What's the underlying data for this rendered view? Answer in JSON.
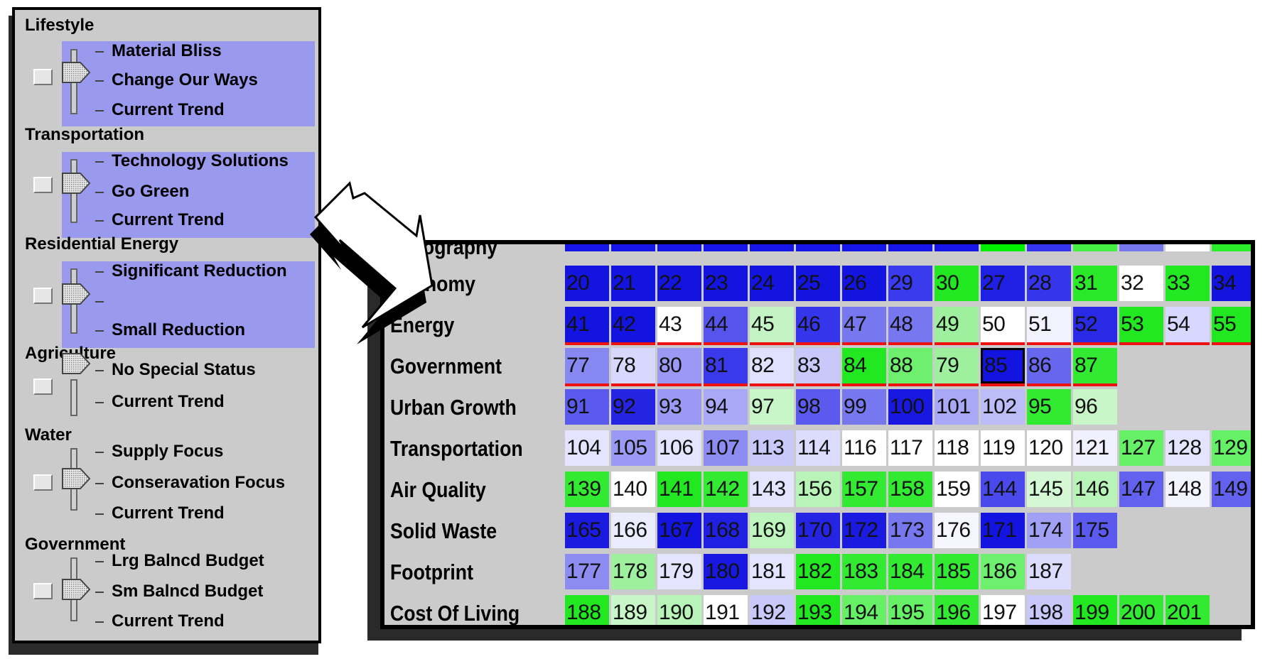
{
  "left_panel": {
    "sections": [
      {
        "title": "Lifestyle",
        "options": [
          "Material Bliss",
          "Change Our Ways",
          "Current Trend"
        ]
      },
      {
        "title": "Transportation",
        "options": [
          "Technology Solutions",
          "Go Green",
          "Current Trend"
        ]
      },
      {
        "title": "Residential Energy",
        "options": [
          "Significant Reduction",
          "",
          "Small Reduction"
        ]
      },
      {
        "title": "Agriculture",
        "options": [
          "No Special Status",
          "Current Trend"
        ]
      },
      {
        "title": "Water",
        "options": [
          "Supply Focus",
          "Conseravation Focus",
          "Current Trend"
        ]
      },
      {
        "title": "Government",
        "options": [
          "Lrg Balncd Budget",
          "Sm Balncd Budget",
          "Current Trend"
        ]
      }
    ]
  },
  "heatmap": {
    "partial_top_label": "...mography",
    "top_strip_colors": [
      "#1515e8",
      "#1515e8",
      "#1515e8",
      "#1515e8",
      "#1515e8",
      "#1515e8",
      "#1515e8",
      "#1515e8",
      "#1515e8",
      "#00ee00",
      "#3535f0",
      "#44f044",
      "#7777ee",
      "#ffffff",
      "#2aee2a",
      "#7575ee"
    ],
    "rows": [
      {
        "label": "Economy",
        "cells": [
          {
            "v": "20",
            "c": "#1414e0"
          },
          {
            "v": "21",
            "c": "#1414e0"
          },
          {
            "v": "22",
            "c": "#1414e0"
          },
          {
            "v": "23",
            "c": "#1414e0"
          },
          {
            "v": "24",
            "c": "#1414e0"
          },
          {
            "v": "25",
            "c": "#1414e0"
          },
          {
            "v": "26",
            "c": "#1414e0"
          },
          {
            "v": "29",
            "c": "#3a3aee"
          },
          {
            "v": "30",
            "c": "#22e822"
          },
          {
            "v": "27",
            "c": "#2020e4"
          },
          {
            "v": "28",
            "c": "#3535ec"
          },
          {
            "v": "31",
            "c": "#2ae82a"
          },
          {
            "v": "32",
            "c": "#ffffff"
          },
          {
            "v": "33",
            "c": "#22e822"
          },
          {
            "v": "34",
            "c": "#1414e0"
          }
        ]
      },
      {
        "label": "Energy",
        "underline": [
          0,
          1,
          2,
          3,
          4,
          5,
          6,
          7,
          8,
          9,
          10,
          11,
          12,
          13,
          14
        ],
        "cells": [
          {
            "v": "41",
            "c": "#1414e0"
          },
          {
            "v": "42",
            "c": "#1414e0"
          },
          {
            "v": "43",
            "c": "#ffffff"
          },
          {
            "v": "44",
            "c": "#5555ee"
          },
          {
            "v": "45",
            "c": "#c4f4c4"
          },
          {
            "v": "46",
            "c": "#3535ec"
          },
          {
            "v": "47",
            "c": "#7777f0"
          },
          {
            "v": "48",
            "c": "#7777f0"
          },
          {
            "v": "49",
            "c": "#9ef09e"
          },
          {
            "v": "50",
            "c": "#ffffff"
          },
          {
            "v": "51",
            "c": "#f2f2ff"
          },
          {
            "v": "52",
            "c": "#2a2ae6"
          },
          {
            "v": "53",
            "c": "#22e822"
          },
          {
            "v": "54",
            "c": "#d8d8ff"
          },
          {
            "v": "55",
            "c": "#22e822"
          }
        ]
      },
      {
        "label": "Government",
        "underline": [
          0,
          1,
          2,
          3,
          4,
          5,
          6,
          7,
          8,
          9,
          10,
          11
        ],
        "cells": [
          {
            "v": "77",
            "c": "#8888f2"
          },
          {
            "v": "78",
            "c": "#d8d8ff"
          },
          {
            "v": "80",
            "c": "#9a9af4"
          },
          {
            "v": "81",
            "c": "#3a3aec"
          },
          {
            "v": "82",
            "c": "#e0e0ff"
          },
          {
            "v": "83",
            "c": "#c8c8fa"
          },
          {
            "v": "84",
            "c": "#22e822"
          },
          {
            "v": "88",
            "c": "#6ef06e"
          },
          {
            "v": "79",
            "c": "#9ef09e"
          },
          {
            "v": "85",
            "c": "#1414e0",
            "hl": true
          },
          {
            "v": "86",
            "c": "#6666ee"
          },
          {
            "v": "87",
            "c": "#33ea33"
          }
        ]
      },
      {
        "label": "Urban Growth",
        "cells": [
          {
            "v": "91",
            "c": "#5a5aee"
          },
          {
            "v": "92",
            "c": "#2424e2"
          },
          {
            "v": "93",
            "c": "#9a9af4"
          },
          {
            "v": "94",
            "c": "#a8a8f6"
          },
          {
            "v": "97",
            "c": "#c8f6c8"
          },
          {
            "v": "98",
            "c": "#5a5aee"
          },
          {
            "v": "99",
            "c": "#7777f0"
          },
          {
            "v": "100",
            "c": "#1818e0"
          },
          {
            "v": "101",
            "c": "#a8a8f6"
          },
          {
            "v": "102",
            "c": "#bcbcf8"
          },
          {
            "v": "95",
            "c": "#33ea33"
          },
          {
            "v": "96",
            "c": "#c8f6c8"
          }
        ]
      },
      {
        "label": "Transportation",
        "cells": [
          {
            "v": "104",
            "c": "#e4e4ff"
          },
          {
            "v": "105",
            "c": "#9a9af4"
          },
          {
            "v": "106",
            "c": "#e4e4ff"
          },
          {
            "v": "107",
            "c": "#8c8cf2"
          },
          {
            "v": "113",
            "c": "#c8c8fa"
          },
          {
            "v": "114",
            "c": "#dcdcff"
          },
          {
            "v": "116",
            "c": "#ffffff"
          },
          {
            "v": "117",
            "c": "#ffffff"
          },
          {
            "v": "118",
            "c": "#ffffff"
          },
          {
            "v": "119",
            "c": "#ffffff"
          },
          {
            "v": "120",
            "c": "#ffffff"
          },
          {
            "v": "121",
            "c": "#f0f0ff"
          },
          {
            "v": "127",
            "c": "#66f066"
          },
          {
            "v": "128",
            "c": "#e4e4ff"
          },
          {
            "v": "129",
            "c": "#66f066"
          }
        ]
      },
      {
        "label": "Air Quality",
        "cells": [
          {
            "v": "139",
            "c": "#33ea33"
          },
          {
            "v": "140",
            "c": "#ffffff"
          },
          {
            "v": "141",
            "c": "#22e822"
          },
          {
            "v": "142",
            "c": "#33ea33"
          },
          {
            "v": "143",
            "c": "#e4e4ff"
          },
          {
            "v": "156",
            "c": "#b8f4b8"
          },
          {
            "v": "157",
            "c": "#33ea33"
          },
          {
            "v": "158",
            "c": "#33ea33"
          },
          {
            "v": "159",
            "c": "#ffffff"
          },
          {
            "v": "144",
            "c": "#4a4aec"
          },
          {
            "v": "145",
            "c": "#d4f8d4"
          },
          {
            "v": "146",
            "c": "#b8f4b8"
          },
          {
            "v": "147",
            "c": "#6262ee"
          },
          {
            "v": "148",
            "c": "#f4f4ff"
          },
          {
            "v": "149",
            "c": "#6262ee"
          }
        ]
      },
      {
        "label": "Solid Waste",
        "cells": [
          {
            "v": "165",
            "c": "#1a1ae0"
          },
          {
            "v": "166",
            "c": "#ececff"
          },
          {
            "v": "167",
            "c": "#1414e0"
          },
          {
            "v": "168",
            "c": "#2020e2"
          },
          {
            "v": "169",
            "c": "#bef4be"
          },
          {
            "v": "170",
            "c": "#2424e2"
          },
          {
            "v": "172",
            "c": "#1a1ae0"
          },
          {
            "v": "173",
            "c": "#7777f0"
          },
          {
            "v": "176",
            "c": "#f6f6ff"
          },
          {
            "v": "171",
            "c": "#1414e0"
          },
          {
            "v": "174",
            "c": "#a0a0f4"
          },
          {
            "v": "175",
            "c": "#5a5aee"
          }
        ]
      },
      {
        "label": "Footprint",
        "cells": [
          {
            "v": "177",
            "c": "#8c8cf2"
          },
          {
            "v": "178",
            "c": "#9ef09e"
          },
          {
            "v": "179",
            "c": "#e4e4ff"
          },
          {
            "v": "180",
            "c": "#1818e0"
          },
          {
            "v": "181",
            "c": "#e4e4ff"
          },
          {
            "v": "182",
            "c": "#22e822"
          },
          {
            "v": "183",
            "c": "#33ea33"
          },
          {
            "v": "184",
            "c": "#33ea33"
          },
          {
            "v": "185",
            "c": "#33ea33"
          },
          {
            "v": "186",
            "c": "#6ef06e"
          },
          {
            "v": "187",
            "c": "#dcdcff"
          }
        ]
      },
      {
        "label": "Cost Of Living",
        "cells": [
          {
            "v": "188",
            "c": "#22e822"
          },
          {
            "v": "189",
            "c": "#c8f6c8"
          },
          {
            "v": "190",
            "c": "#b8f4b8"
          },
          {
            "v": "191",
            "c": "#ffffff"
          },
          {
            "v": "192",
            "c": "#c8c8fa"
          },
          {
            "v": "193",
            "c": "#22e822"
          },
          {
            "v": "194",
            "c": "#66f066"
          },
          {
            "v": "195",
            "c": "#66f066"
          },
          {
            "v": "196",
            "c": "#33ea33"
          },
          {
            "v": "197",
            "c": "#ffffff"
          },
          {
            "v": "198",
            "c": "#c8c8fa"
          },
          {
            "v": "199",
            "c": "#22e822"
          },
          {
            "v": "200",
            "c": "#33ea33"
          },
          {
            "v": "201",
            "c": "#33ea33"
          }
        ]
      }
    ]
  },
  "icons": {
    "arrow": "double-headed-arrow-icon",
    "slider_thumb": "slider-thumb-icon",
    "checkbox": "checkbox-icon"
  }
}
